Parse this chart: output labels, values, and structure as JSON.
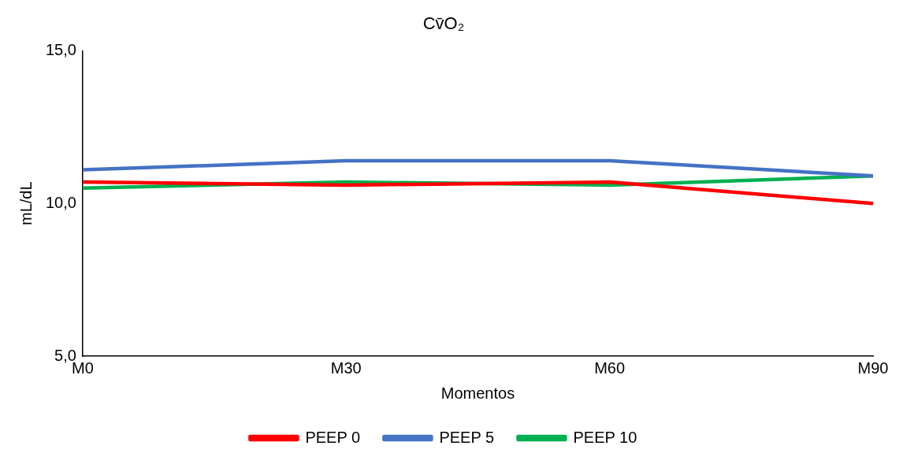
{
  "chart_data": {
    "type": "line",
    "title": "Cv̄O₂",
    "xlabel": "Momentos",
    "ylabel": "mL/dL",
    "categories": [
      "M0",
      "M30",
      "M60",
      "M90"
    ],
    "series": [
      {
        "name": "PEEP 0",
        "color": "#ff0000",
        "values": [
          10.7,
          10.6,
          10.7,
          10.0
        ]
      },
      {
        "name": "PEEP 5",
        "color": "#4472c4",
        "values": [
          11.1,
          11.4,
          11.4,
          10.9
        ]
      },
      {
        "name": "PEEP 10",
        "color": "#00b050",
        "values": [
          10.5,
          10.7,
          10.6,
          10.9
        ]
      }
    ],
    "ylim": [
      5,
      15
    ],
    "yticks": [
      {
        "value": 5,
        "label": "5,0"
      },
      {
        "value": 10,
        "label": "10,0"
      },
      {
        "value": 15,
        "label": "15,0"
      }
    ],
    "grid": false,
    "legend": "bottom",
    "marker": "none",
    "line_style": "solid"
  }
}
